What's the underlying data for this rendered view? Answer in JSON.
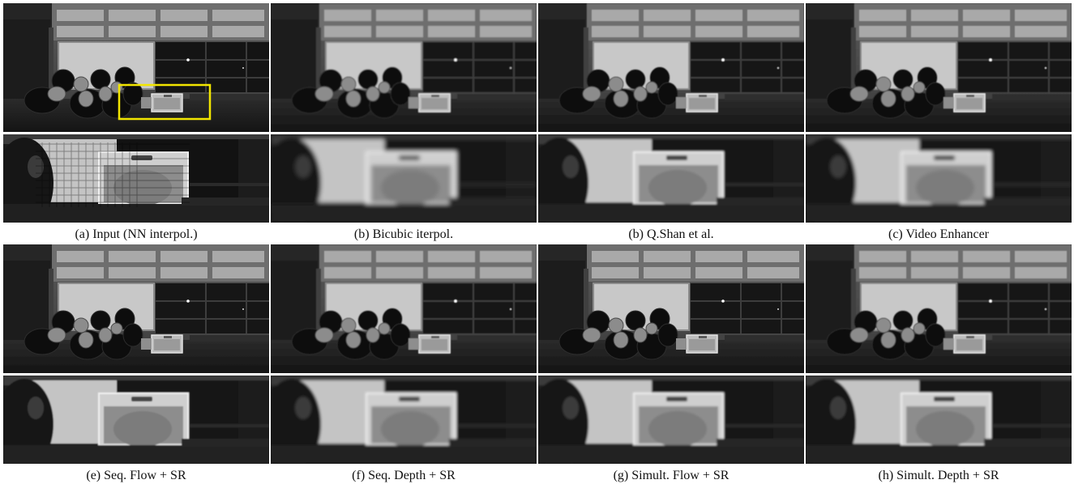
{
  "figure": {
    "panels": [
      {
        "caption": "(a) Input (NN interpol.)",
        "highlight": true,
        "blur": 0,
        "pixelated": true
      },
      {
        "caption": "(b) Bicubic iterpol.",
        "highlight": false,
        "blur": 1.6,
        "pixelated": false
      },
      {
        "caption": "(b) Q.Shan et al.",
        "highlight": false,
        "blur": 0.9,
        "pixelated": false
      },
      {
        "caption": "(c) Video Enhancer",
        "highlight": false,
        "blur": 1.3,
        "pixelated": false
      },
      {
        "caption": "(e) Seq. Flow + SR",
        "highlight": false,
        "blur": 0.5,
        "pixelated": false
      },
      {
        "caption": "(f) Seq. Depth + SR",
        "highlight": false,
        "blur": 1.0,
        "pixelated": false
      },
      {
        "caption": "(g) Simult. Flow + SR",
        "highlight": false,
        "blur": 0.8,
        "pixelated": false
      },
      {
        "caption": "(h) Simult. Depth + SR",
        "highlight": false,
        "blur": 0.9,
        "pixelated": false
      }
    ],
    "colors": {
      "highlight_box": "#f2e600",
      "background": "#ffffff",
      "caption_text": "#111111"
    }
  }
}
